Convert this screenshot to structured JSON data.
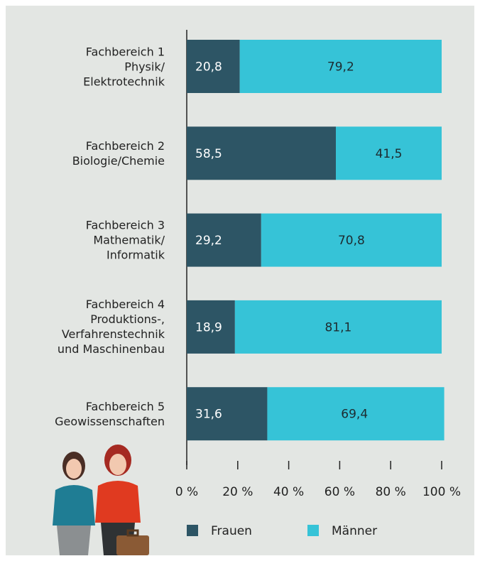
{
  "chart_data": {
    "type": "stacked-bar-horizontal",
    "categories": [
      "Fachbereich 1\nPhysik/\nElektrotechnik",
      "Fachbereich 2\nBiologie/Chemie",
      "Fachbereich 3\nMathematik/\nInformatik",
      "Fachbereich 4\nProduktions-,\nVerfahrenstechnik\nund Maschinenbau",
      "Fachbereich 5\nGeowissenschaften"
    ],
    "series": [
      {
        "name": "Frauen",
        "color": "#2d5565",
        "values": [
          20.8,
          58.5,
          29.2,
          18.9,
          31.6
        ],
        "value_labels": [
          "20,8",
          "58,5",
          "29,2",
          "18,9",
          "31,6"
        ]
      },
      {
        "name": "Männer",
        "color": "#36c3d7",
        "values": [
          79.2,
          41.5,
          70.8,
          81.1,
          69.4
        ],
        "value_labels": [
          "79,2",
          "41,5",
          "70,8",
          "81,1",
          "69,4"
        ]
      }
    ],
    "xlim": [
      0,
      100
    ],
    "xticks": [
      {
        "value": 0,
        "label": "0 %"
      },
      {
        "value": 20,
        "label": "20 %"
      },
      {
        "value": 40,
        "label": "40 %"
      },
      {
        "value": 60,
        "label": "60 %"
      },
      {
        "value": 80,
        "label": "80 %"
      },
      {
        "value": 100,
        "label": "100 %"
      }
    ],
    "legend": "bottom"
  }
}
